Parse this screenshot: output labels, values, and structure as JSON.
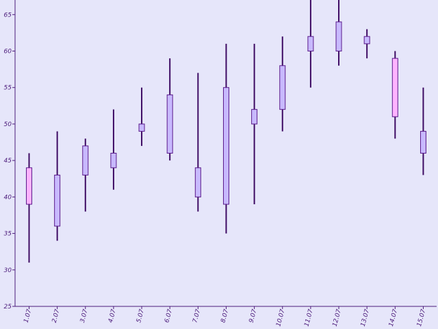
{
  "chart_data": {
    "type": "candlestick",
    "title": "",
    "xlabel": "",
    "ylabel": "",
    "ylim": [
      25,
      67
    ],
    "yticks": [
      25,
      30,
      35,
      40,
      45,
      50,
      55,
      60,
      65
    ],
    "grid": false,
    "categories": [
      "1.07",
      "2.07",
      "3.07",
      "4.07",
      "5.07",
      "6.07",
      "7.07",
      "8.07",
      "9.07",
      "10.07",
      "11.07",
      "12.07",
      "13.07",
      "14.07",
      "15.07"
    ],
    "open": [
      44,
      36,
      43,
      44,
      49,
      46,
      40,
      39,
      50,
      52,
      60,
      60,
      61,
      59,
      46
    ],
    "close": [
      39,
      43,
      47,
      46,
      50,
      54,
      44,
      55,
      52,
      58,
      62,
      64,
      62,
      51,
      49
    ],
    "high": [
      46,
      49,
      48,
      52,
      55,
      59,
      57,
      61,
      61,
      62,
      67,
      68,
      63,
      60,
      55
    ],
    "low": [
      31,
      34,
      38,
      41,
      47,
      45,
      38,
      35,
      39,
      49,
      55,
      58,
      59,
      48,
      43
    ],
    "colors": {
      "background": "#e6e6fa",
      "axis": "#4b1a7a",
      "wick": "#3d0a63",
      "up_fill": "#c8b9ff",
      "down_fill": "#ffb3ff",
      "box_border": "#5a1a8a"
    }
  }
}
